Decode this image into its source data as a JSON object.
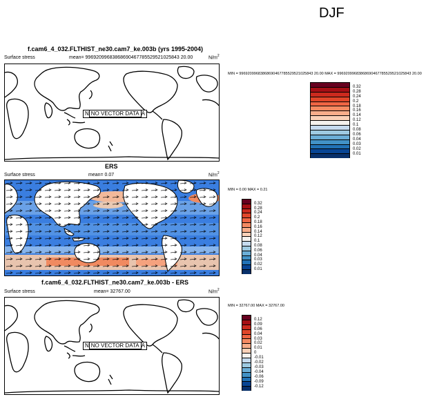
{
  "season": "DJF",
  "panels": [
    {
      "title": "f.cam6_4_032.FLTHIST_ne30.cam7_ke.003b (yrs 1995-2004)",
      "left_label": "Surface stress",
      "mean_text": "mean= 99692099683868690467785529521025843 20.00",
      "units": "N/m",
      "units_sup": "2",
      "minmax": "MIN = 99692099683868690467785529521025843 20.00 MAX = 99692099683868690467785529521025843 20.00",
      "no_data_label": "NO VECTOR DATA",
      "no_data_prefix": "N",
      "no_data_suffix": "A"
    },
    {
      "title": "ERS",
      "left_label": "Surface stress",
      "mean_text": "mean=   0.07",
      "units": "N/m",
      "units_sup": "2",
      "minmax": "MIN =  0.00 MAX =   0.21"
    },
    {
      "title": "f.cam6_4_032.FLTHIST_ne30.cam7_ke.003b - ERS",
      "left_label": "Surface stress",
      "mean_text": "mean= 32767.00",
      "units": "N/m",
      "units_sup": "2",
      "minmax": "MIN = 32767.00 MAX = 32767.00",
      "no_data_label": "NO VECTOR DATA",
      "no_data_prefix": "N",
      "no_data_suffix": "A"
    }
  ],
  "colorbar_abs": {
    "labels": [
      "0.32",
      "0.28",
      "0.24",
      "0.2",
      "0.18",
      "0.16",
      "0.14",
      "0.12",
      "0.1",
      "0.08",
      "0.06",
      "0.04",
      "0.03",
      "0.02",
      "0.01"
    ],
    "colors": [
      "#67001f",
      "#a50f15",
      "#cb2a1e",
      "#e0462a",
      "#ef6543",
      "#f58a62",
      "#f8ad8a",
      "#fbd1b8",
      "#f5f2ee",
      "#c6dbef",
      "#9ecae1",
      "#6baed6",
      "#4292c6",
      "#2171b5",
      "#084594",
      "#08306b"
    ]
  },
  "colorbar_diff": {
    "labels": [
      "0.12",
      "0.09",
      "0.06",
      "0.04",
      "0.03",
      "0.02",
      "0.01",
      "0",
      "-0.01",
      "-0.02",
      "-0.03",
      "-0.04",
      "-0.06",
      "-0.09",
      "-0.12"
    ],
    "colors": [
      "#67001f",
      "#a50f15",
      "#cb2a1e",
      "#e0462a",
      "#ef6543",
      "#f58a62",
      "#f8ad8a",
      "#fbd1b8",
      "#f5f2ee",
      "#c6dbef",
      "#9ecae1",
      "#6baed6",
      "#4292c6",
      "#2171b5",
      "#084594",
      "#08306b"
    ]
  }
}
